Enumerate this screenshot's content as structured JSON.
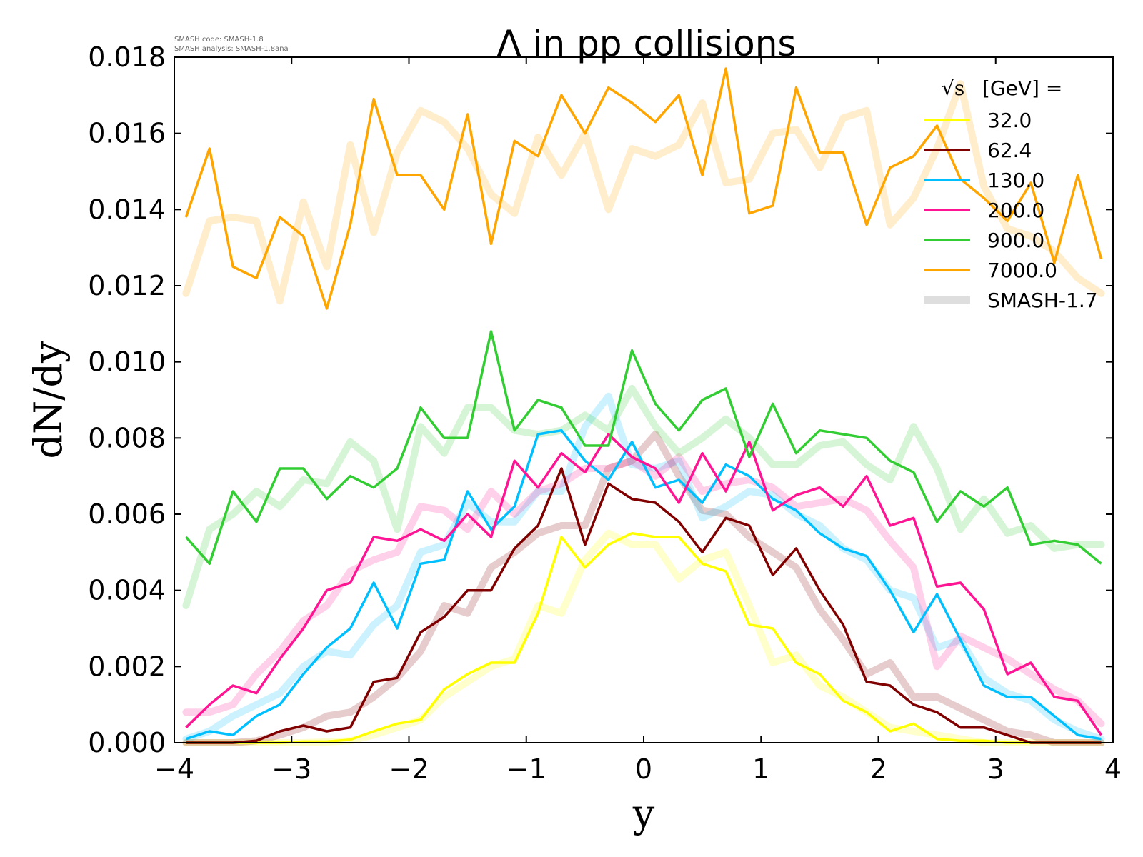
{
  "credits": {
    "code": "SMASH code:      SMASH-1.8",
    "analysis": "SMASH analysis: SMASH-1.8ana"
  },
  "chart_data": {
    "type": "line",
    "title": "Λ in pp collisions",
    "xlabel": "y",
    "ylabel": "dN/dy",
    "xlim": [
      -4,
      4
    ],
    "ylim": [
      0,
      0.018
    ],
    "xticks": [
      "−4",
      "−3",
      "−2",
      "−1",
      "0",
      "1",
      "2",
      "3",
      "4"
    ],
    "yticks": [
      "0.000",
      "0.002",
      "0.004",
      "0.006",
      "0.008",
      "0.010",
      "0.012",
      "0.014",
      "0.016",
      "0.018"
    ],
    "legend_title": "[GeV] =",
    "legend_title_symbol": "√s",
    "legend_position": "top-right",
    "x": [
      -3.9,
      -3.7,
      -3.5,
      -3.3,
      -3.1,
      -2.9,
      -2.7,
      -2.5,
      -2.3,
      -2.1,
      -1.9,
      -1.7,
      -1.5,
      -1.3,
      -1.1,
      -0.9,
      -0.7,
      -0.5,
      -0.3,
      -0.1,
      0.1,
      0.3,
      0.5,
      0.7,
      0.9,
      1.1,
      1.3,
      1.5,
      1.7,
      1.9,
      2.1,
      2.3,
      2.5,
      2.7,
      2.9,
      3.1,
      3.3,
      3.5,
      3.7,
      3.9
    ],
    "series": [
      {
        "name": "32.0",
        "color": "#ffff00",
        "version": "SMASH-1.8",
        "values": [
          0,
          0,
          0,
          0,
          0,
          3e-05,
          3e-05,
          8e-05,
          0.0003,
          0.0005,
          0.0006,
          0.0014,
          0.0018,
          0.0021,
          0.0021,
          0.0034,
          0.0054,
          0.0046,
          0.0052,
          0.0055,
          0.0054,
          0.0054,
          0.0047,
          0.0045,
          0.0031,
          0.003,
          0.0021,
          0.0018,
          0.0011,
          0.0008,
          0.0003,
          0.0005,
          0.0001,
          5e-05,
          5e-05,
          0,
          0,
          0,
          0,
          0
        ]
      },
      {
        "name": "62.4",
        "color": "#800000",
        "version": "SMASH-1.8",
        "values": [
          0,
          0,
          0,
          5e-05,
          0.0003,
          0.00045,
          0.0003,
          0.0004,
          0.0016,
          0.0017,
          0.0029,
          0.0033,
          0.004,
          0.004,
          0.0051,
          0.0057,
          0.0072,
          0.0052,
          0.0068,
          0.0064,
          0.0063,
          0.0058,
          0.005,
          0.0059,
          0.0057,
          0.0044,
          0.0051,
          0.004,
          0.0031,
          0.0016,
          0.0015,
          0.001,
          0.0008,
          0.0004,
          0.0004,
          0.0002,
          0,
          0,
          0,
          0
        ]
      },
      {
        "name": "130.0",
        "color": "#00bfff",
        "version": "SMASH-1.8",
        "values": [
          0.0001,
          0.0003,
          0.0002,
          0.0007,
          0.001,
          0.0018,
          0.0025,
          0.003,
          0.0042,
          0.003,
          0.0047,
          0.0048,
          0.0066,
          0.0056,
          0.0062,
          0.0081,
          0.0082,
          0.0074,
          0.0069,
          0.0079,
          0.0067,
          0.0069,
          0.0063,
          0.0073,
          0.007,
          0.0064,
          0.0061,
          0.0055,
          0.0051,
          0.0049,
          0.004,
          0.0029,
          0.0039,
          0.0027,
          0.0015,
          0.0012,
          0.0012,
          0.0007,
          0.0002,
          0.0001
        ]
      },
      {
        "name": "200.0",
        "color": "#ff1493",
        "version": "SMASH-1.8",
        "values": [
          0.0004,
          0.001,
          0.0015,
          0.0013,
          0.0022,
          0.003,
          0.004,
          0.0042,
          0.0054,
          0.0053,
          0.0056,
          0.0053,
          0.006,
          0.0054,
          0.0074,
          0.0067,
          0.0076,
          0.0071,
          0.0081,
          0.0075,
          0.0072,
          0.0063,
          0.0076,
          0.0066,
          0.0079,
          0.0061,
          0.0065,
          0.0067,
          0.0062,
          0.007,
          0.0057,
          0.0059,
          0.0041,
          0.0042,
          0.0035,
          0.0018,
          0.0021,
          0.0012,
          0.0011,
          0.0002
        ]
      },
      {
        "name": "900.0",
        "color": "#32cd32",
        "version": "SMASH-1.8",
        "values": [
          0.0054,
          0.0047,
          0.0066,
          0.0058,
          0.0072,
          0.0072,
          0.0064,
          0.007,
          0.0067,
          0.0072,
          0.0088,
          0.008,
          0.008,
          0.0108,
          0.0082,
          0.009,
          0.0088,
          0.0078,
          0.0078,
          0.0103,
          0.0089,
          0.0082,
          0.009,
          0.0093,
          0.0075,
          0.0089,
          0.0076,
          0.0082,
          0.0081,
          0.008,
          0.0074,
          0.0071,
          0.0058,
          0.0066,
          0.0062,
          0.0067,
          0.0052,
          0.0053,
          0.0052,
          0.0047
        ]
      },
      {
        "name": "7000.0",
        "color": "#ffa500",
        "version": "SMASH-1.8",
        "values": [
          0.0138,
          0.0156,
          0.0125,
          0.0122,
          0.0138,
          0.0133,
          0.0114,
          0.0136,
          0.0169,
          0.0149,
          0.0149,
          0.014,
          0.0165,
          0.0131,
          0.0158,
          0.0154,
          0.017,
          0.016,
          0.0172,
          0.0168,
          0.0163,
          0.017,
          0.0149,
          0.0177,
          0.0139,
          0.0141,
          0.0172,
          0.0155,
          0.0155,
          0.0136,
          0.0151,
          0.0154,
          0.0162,
          0.0148,
          0.0143,
          0.0137,
          0.0147,
          0.0126,
          0.0149,
          0.0127
        ]
      },
      {
        "name": "32.0 (SMASH-1.7)",
        "color": "#ffff00",
        "version": "SMASH-1.7",
        "values": [
          0,
          0,
          0,
          0,
          0,
          0,
          2e-05,
          5e-05,
          0.0002,
          0.0004,
          0.0006,
          0.0012,
          0.0016,
          0.002,
          0.0022,
          0.0036,
          0.0034,
          0.0048,
          0.0055,
          0.0052,
          0.0052,
          0.0043,
          0.0048,
          0.005,
          0.0036,
          0.0021,
          0.0023,
          0.0015,
          0.0012,
          0.0008,
          0.0004,
          0.0003,
          0.0002,
          0.0001,
          0,
          0,
          0,
          0,
          0,
          0
        ]
      },
      {
        "name": "62.4 (SMASH-1.7)",
        "color": "#800000",
        "version": "SMASH-1.7",
        "values": [
          0,
          0,
          0,
          5e-05,
          0.0002,
          0.0004,
          0.0007,
          0.0008,
          0.0012,
          0.0017,
          0.0024,
          0.0036,
          0.0034,
          0.0046,
          0.005,
          0.0055,
          0.0057,
          0.0057,
          0.0072,
          0.0074,
          0.0081,
          0.007,
          0.0061,
          0.006,
          0.0054,
          0.005,
          0.0046,
          0.0035,
          0.0027,
          0.0018,
          0.0021,
          0.0012,
          0.0012,
          0.0009,
          0.0006,
          0.0003,
          0.0002,
          0,
          0,
          0
        ]
      },
      {
        "name": "130.0 (SMASH-1.7)",
        "color": "#00bfff",
        "version": "SMASH-1.7",
        "values": [
          0.0001,
          0.0003,
          0.0007,
          0.001,
          0.0013,
          0.002,
          0.0024,
          0.0023,
          0.0031,
          0.0036,
          0.005,
          0.0052,
          0.0063,
          0.0058,
          0.0058,
          0.0066,
          0.0066,
          0.0083,
          0.0091,
          0.0073,
          0.0072,
          0.0074,
          0.0059,
          0.0062,
          0.0066,
          0.0065,
          0.006,
          0.0057,
          0.0051,
          0.0048,
          0.004,
          0.0038,
          0.0025,
          0.0027,
          0.0017,
          0.0013,
          0.0011,
          0.0006,
          0.0003,
          0.0001
        ]
      },
      {
        "name": "200.0 (SMASH-1.7)",
        "color": "#ff1493",
        "version": "SMASH-1.7",
        "values": [
          0.0008,
          0.0008,
          0.001,
          0.0018,
          0.0024,
          0.0032,
          0.0036,
          0.0045,
          0.0048,
          0.005,
          0.0062,
          0.0061,
          0.0056,
          0.0066,
          0.006,
          0.0066,
          0.0068,
          0.0072,
          0.0072,
          0.0074,
          0.007,
          0.0075,
          0.0066,
          0.0068,
          0.0069,
          0.0067,
          0.0062,
          0.0063,
          0.0064,
          0.0061,
          0.0053,
          0.0046,
          0.002,
          0.0028,
          0.0025,
          0.0022,
          0.0018,
          0.0014,
          0.0011,
          0.0005
        ]
      },
      {
        "name": "900.0 (SMASH-1.7)",
        "color": "#32cd32",
        "version": "SMASH-1.7",
        "values": [
          0.0036,
          0.0056,
          0.006,
          0.0066,
          0.0062,
          0.0069,
          0.0068,
          0.0079,
          0.0074,
          0.0056,
          0.0083,
          0.0076,
          0.0088,
          0.0088,
          0.0082,
          0.0081,
          0.0082,
          0.0086,
          0.0082,
          0.0093,
          0.0083,
          0.0076,
          0.008,
          0.0085,
          0.008,
          0.0073,
          0.0073,
          0.0078,
          0.0079,
          0.0073,
          0.0069,
          0.0083,
          0.0072,
          0.0056,
          0.0064,
          0.0055,
          0.0057,
          0.0051,
          0.0052,
          0.0052
        ]
      },
      {
        "name": "7000.0 (SMASH-1.7)",
        "color": "#ffa500",
        "version": "SMASH-1.7",
        "values": [
          0.0118,
          0.0137,
          0.0138,
          0.0137,
          0.0116,
          0.0142,
          0.0125,
          0.0157,
          0.0134,
          0.0155,
          0.0166,
          0.0163,
          0.0156,
          0.0144,
          0.0139,
          0.0159,
          0.0149,
          0.016,
          0.014,
          0.0156,
          0.0154,
          0.0157,
          0.0168,
          0.0147,
          0.0148,
          0.016,
          0.0161,
          0.0151,
          0.0164,
          0.0166,
          0.0136,
          0.0143,
          0.0156,
          0.0173,
          0.0146,
          0.0135,
          0.0133,
          0.0129,
          0.0122,
          0.0118
        ]
      }
    ],
    "legend": [
      {
        "label": "32.0",
        "color": "#ffff00",
        "style": "thin"
      },
      {
        "label": "62.4",
        "color": "#800000",
        "style": "thin"
      },
      {
        "label": "130.0",
        "color": "#00bfff",
        "style": "thin"
      },
      {
        "label": "200.0",
        "color": "#ff1493",
        "style": "thin"
      },
      {
        "label": "900.0",
        "color": "#32cd32",
        "style": "thin"
      },
      {
        "label": "7000.0",
        "color": "#ffa500",
        "style": "thin"
      },
      {
        "label": "SMASH-1.7",
        "color": "#cccccc",
        "style": "thick"
      }
    ]
  }
}
